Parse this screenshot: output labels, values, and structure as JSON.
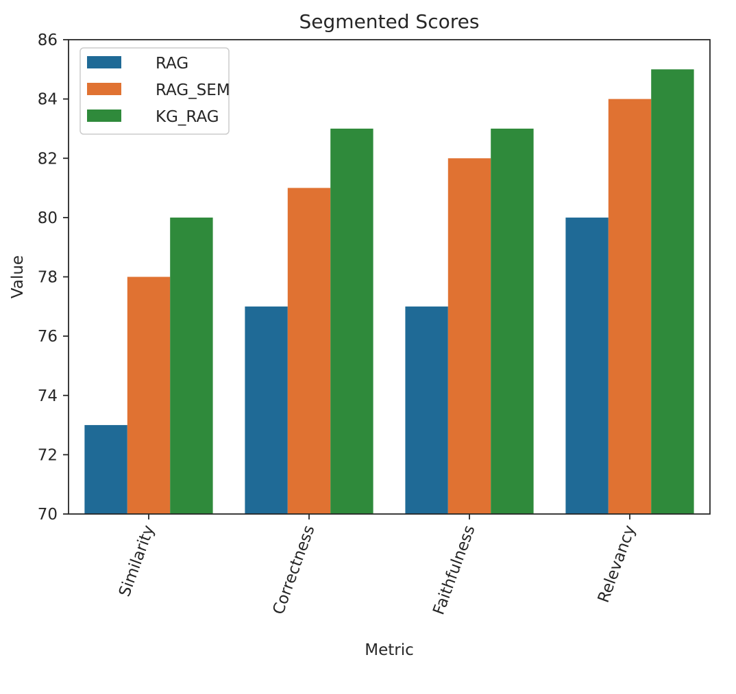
{
  "chart_data": {
    "type": "bar",
    "title": "Segmented Scores",
    "xlabel": "Metric",
    "ylabel": "Value",
    "categories": [
      "Similarity",
      "Correctness",
      "Faithfulness",
      "Relevancy"
    ],
    "series": [
      {
        "name": "RAG",
        "color": "#1f6a96",
        "values": [
          73,
          77,
          77,
          80
        ]
      },
      {
        "name": "RAG_SEM",
        "color": "#e07232",
        "values": [
          78,
          81,
          82,
          84
        ]
      },
      {
        "name": "KG_RAG",
        "color": "#2f8a3b",
        "values": [
          80,
          83,
          83,
          85
        ]
      }
    ],
    "ylim": [
      70,
      86
    ],
    "yticks": [
      "70",
      "72",
      "74",
      "76",
      "78",
      "80",
      "82",
      "84",
      "86"
    ],
    "grid": false,
    "legend_position": "upper-left",
    "xtick_rotation": "70 degrees"
  }
}
